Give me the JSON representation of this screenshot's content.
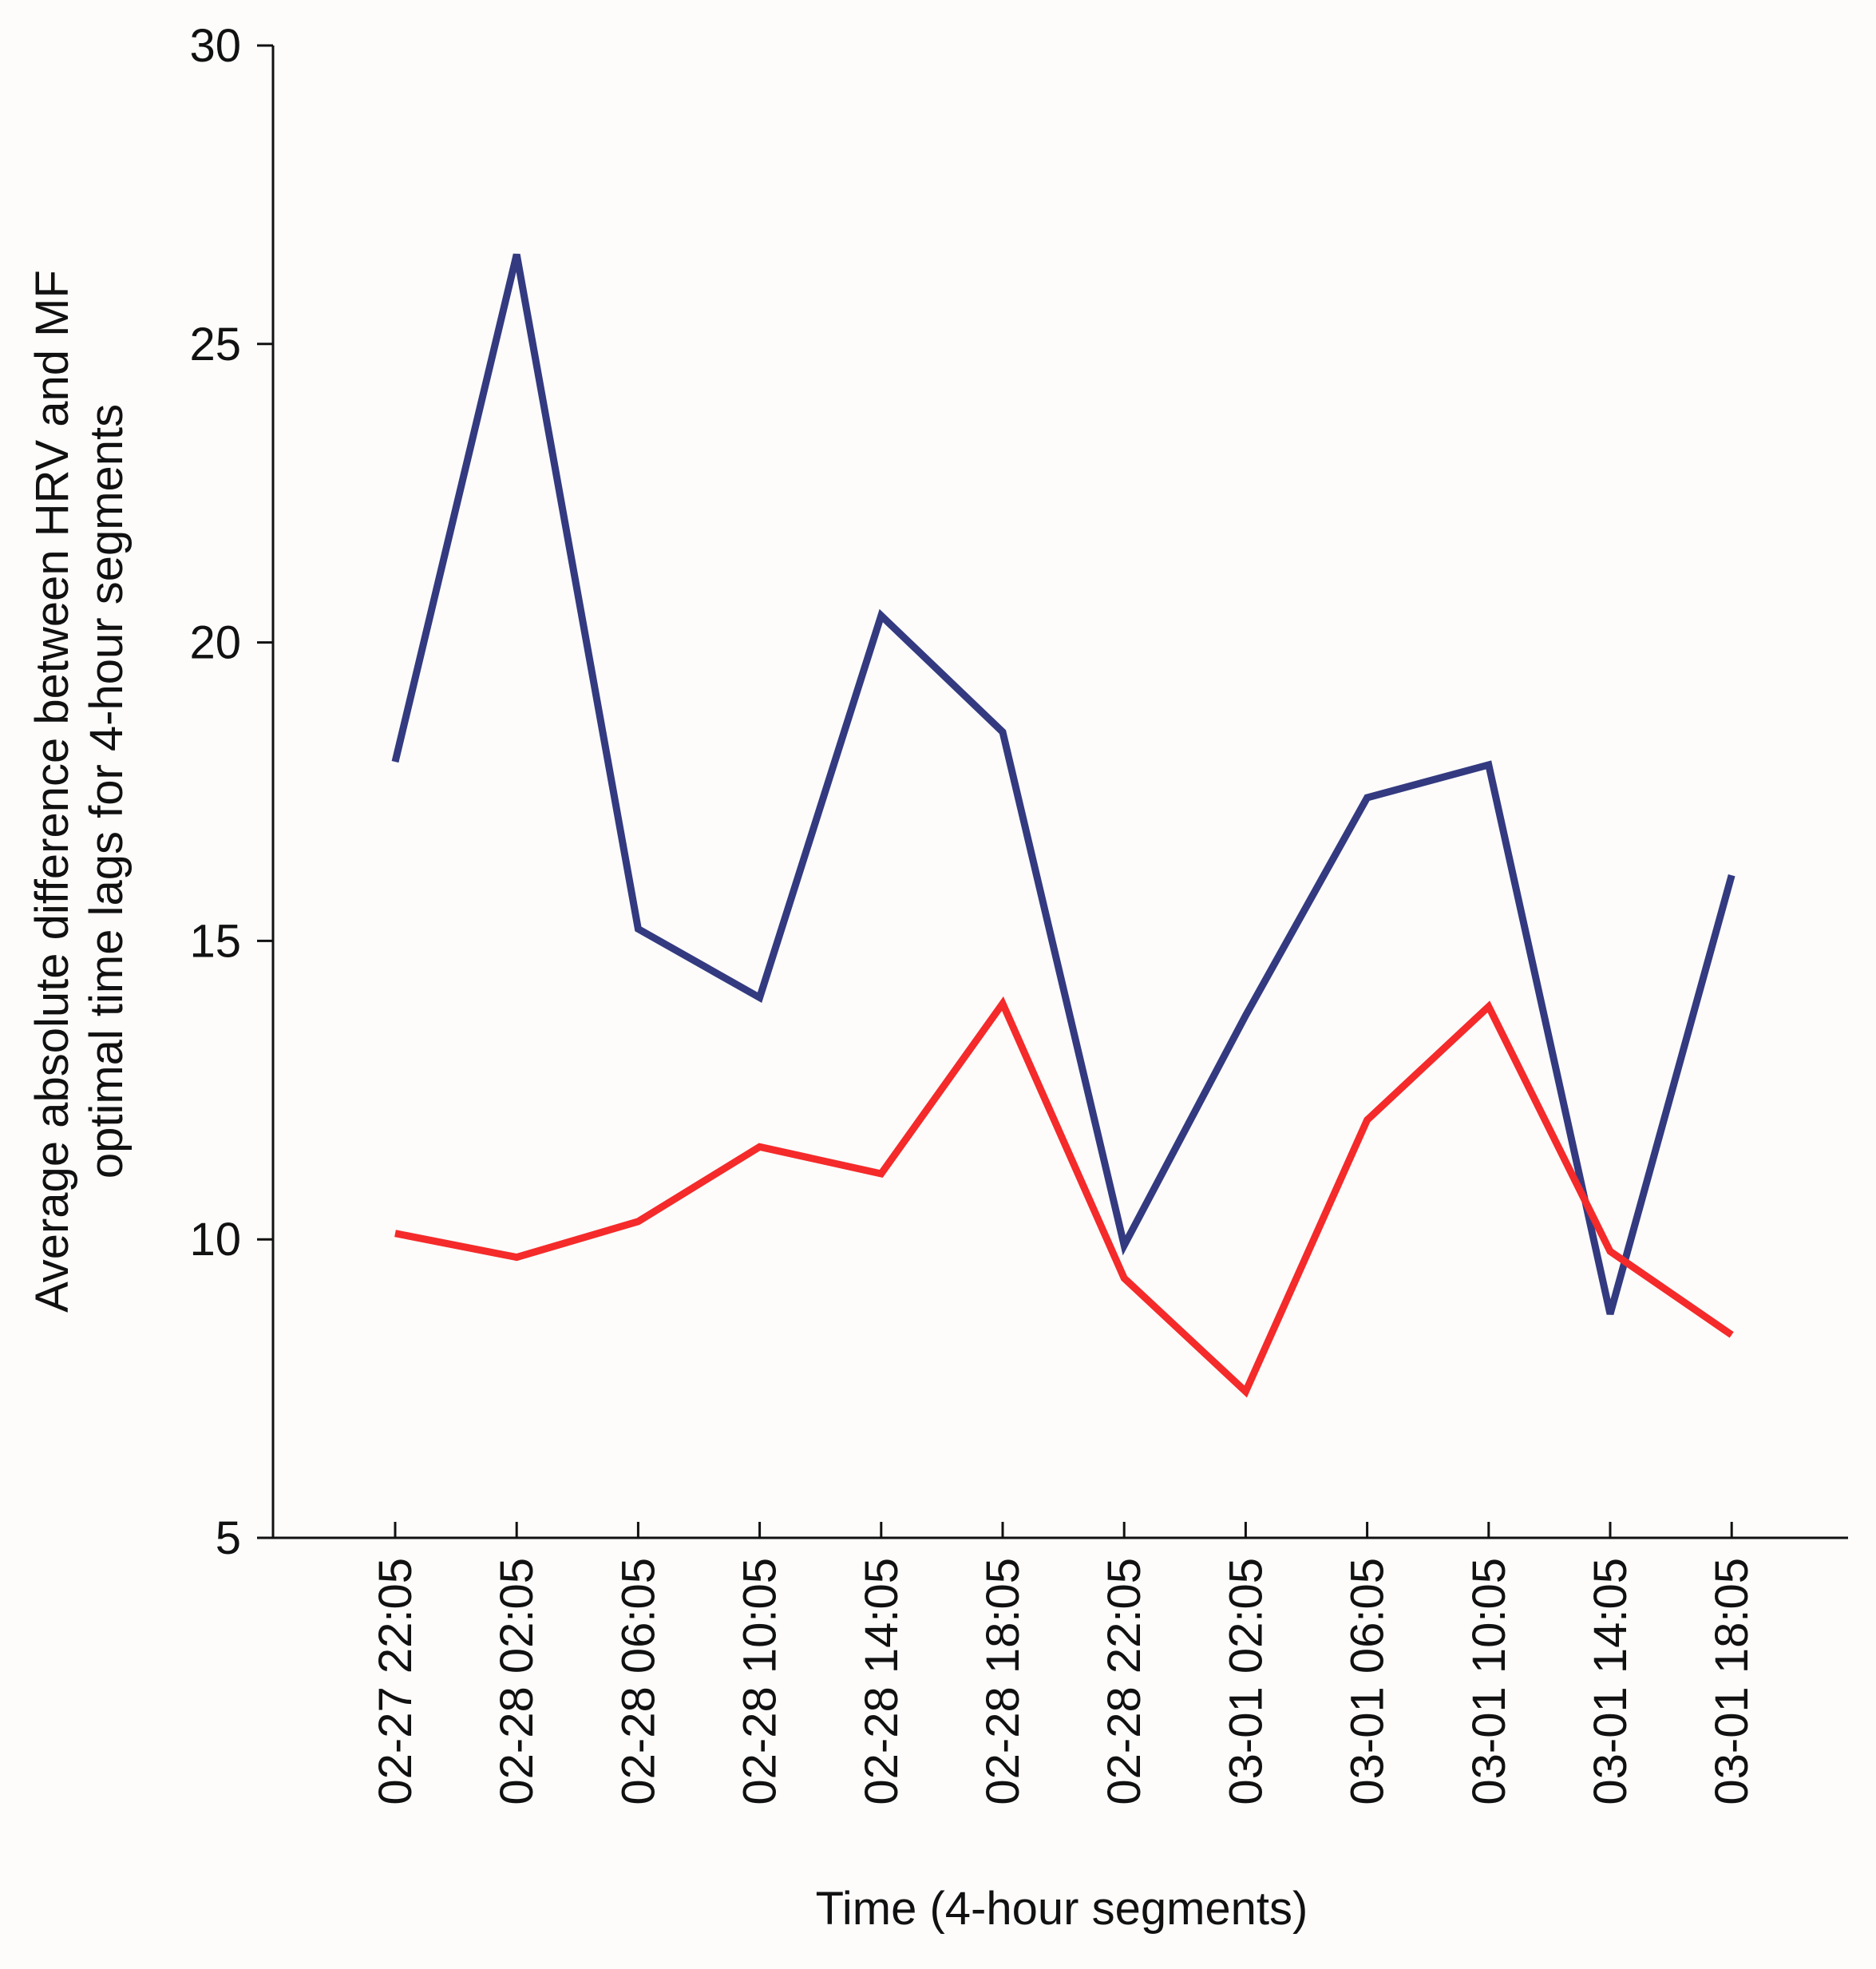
{
  "chart_data": {
    "type": "line",
    "title": "",
    "xlabel": "Time (4-hour segments)",
    "ylabel_lines": [
      "Average absolute difference between HRV and MF",
      "optimal time lags for 4-hour segments"
    ],
    "categories": [
      "02-27 22:05",
      "02-28 02:05",
      "02-28 06:05",
      "02-28 10:05",
      "02-28 14:05",
      "02-28 18:05",
      "02-28 22:05",
      "03-01 02:05",
      "03-01 06:05",
      "03-01 10:05",
      "03-01 14:05",
      "03-01 18:05"
    ],
    "yticks": [
      "5",
      "10",
      "15",
      "20",
      "25",
      "30"
    ],
    "ylim": [
      5,
      30
    ],
    "grid": false,
    "legend": "none",
    "series": [
      {
        "name": "blue",
        "color": "#333a80",
        "values": [
          18.0,
          26.5,
          15.2,
          14.05,
          20.45,
          18.5,
          9.9,
          13.75,
          17.4,
          17.95,
          8.75,
          16.1
        ]
      },
      {
        "name": "red",
        "color": "#f52a2a",
        "values": [
          10.1,
          9.7,
          10.3,
          11.55,
          11.1,
          13.95,
          9.35,
          7.45,
          12.0,
          13.9,
          9.8,
          8.4
        ]
      }
    ]
  }
}
